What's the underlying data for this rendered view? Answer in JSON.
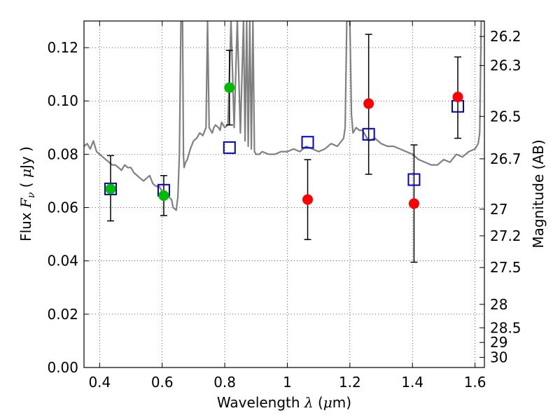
{
  "chart_data": {
    "type": "scatter",
    "title": "",
    "xlabel": "Wavelength  λ (μm)",
    "ylabel": "Flux  Fν  ( μJy )",
    "y2label": "Magnitude (AB)",
    "xlim": [
      0.35,
      1.63
    ],
    "ylim": [
      0.0,
      0.13
    ],
    "grid": true,
    "x_ticks": [
      0.4,
      0.6,
      0.8,
      1.0,
      1.2,
      1.4,
      1.6
    ],
    "x_tick_labels": [
      "0.4",
      "0.6",
      "0.8",
      "1",
      "1.2",
      "1.4",
      "1.6"
    ],
    "y_ticks": [
      0.0,
      0.02,
      0.04,
      0.06,
      0.08,
      0.1,
      0.12
    ],
    "y_tick_labels": [
      "0.00",
      "0.02",
      "0.04",
      "0.06",
      "0.08",
      "0.10",
      "0.12"
    ],
    "y2_ticks": [
      {
        "label": "26.2",
        "flux": 0.1242
      },
      {
        "label": "26.3",
        "flux": 0.1133
      },
      {
        "label": "26.5",
        "flux": 0.0942
      },
      {
        "label": "26.7",
        "flux": 0.0783
      },
      {
        "label": "27",
        "flux": 0.0594
      },
      {
        "label": "27.2",
        "flux": 0.0494
      },
      {
        "label": "27.5",
        "flux": 0.0375
      },
      {
        "label": "28",
        "flux": 0.0237
      },
      {
        "label": "28.5",
        "flux": 0.0149
      },
      {
        "label": "29",
        "flux": 0.0094
      },
      {
        "label": "30",
        "flux": 0.0038
      }
    ],
    "model_spectrum": {
      "color": "#808080",
      "x": [
        0.35,
        0.36,
        0.37,
        0.38,
        0.39,
        0.4,
        0.41,
        0.42,
        0.43,
        0.44,
        0.45,
        0.46,
        0.47,
        0.48,
        0.49,
        0.5,
        0.51,
        0.52,
        0.53,
        0.54,
        0.55,
        0.56,
        0.57,
        0.58,
        0.59,
        0.6,
        0.61,
        0.62,
        0.63,
        0.635,
        0.645,
        0.65,
        0.655,
        0.66,
        0.665,
        0.668,
        0.67,
        0.675,
        0.68,
        0.69,
        0.7,
        0.71,
        0.72,
        0.73,
        0.74,
        0.745,
        0.75,
        0.76,
        0.765,
        0.77,
        0.78,
        0.785,
        0.79,
        0.8,
        0.81,
        0.82,
        0.83,
        0.84,
        0.85,
        0.86,
        0.865,
        0.87,
        0.875,
        0.88,
        0.885,
        0.89,
        0.895,
        0.9,
        0.91,
        0.92,
        0.94,
        0.96,
        0.98,
        1.0,
        1.02,
        1.04,
        1.06,
        1.08,
        1.1,
        1.12,
        1.14,
        1.16,
        1.18,
        1.185,
        1.19,
        1.195,
        1.2,
        1.205,
        1.21,
        1.22,
        1.23,
        1.24,
        1.26,
        1.28,
        1.3,
        1.32,
        1.34,
        1.36,
        1.38,
        1.4,
        1.42,
        1.44,
        1.46,
        1.48,
        1.5,
        1.52,
        1.54,
        1.56,
        1.58,
        1.6,
        1.61,
        1.615,
        1.62,
        1.625,
        1.63
      ],
      "y": [
        0.083,
        0.084,
        0.082,
        0.085,
        0.081,
        0.08,
        0.079,
        0.078,
        0.077,
        0.076,
        0.076,
        0.075,
        0.074,
        0.076,
        0.075,
        0.075,
        0.073,
        0.072,
        0.071,
        0.07,
        0.071,
        0.072,
        0.069,
        0.068,
        0.068,
        0.066,
        0.065,
        0.064,
        0.063,
        0.06,
        0.059,
        0.064,
        0.08,
        0.13,
        0.13,
        0.08,
        0.075,
        0.077,
        0.078,
        0.082,
        0.085,
        0.086,
        0.088,
        0.087,
        0.09,
        0.13,
        0.09,
        0.088,
        0.09,
        0.091,
        0.09,
        0.089,
        0.092,
        0.09,
        0.091,
        0.13,
        0.09,
        0.13,
        0.088,
        0.13,
        0.085,
        0.13,
        0.083,
        0.13,
        0.082,
        0.13,
        0.081,
        0.08,
        0.08,
        0.081,
        0.08,
        0.08,
        0.081,
        0.081,
        0.082,
        0.081,
        0.083,
        0.082,
        0.081,
        0.082,
        0.084,
        0.083,
        0.086,
        0.09,
        0.13,
        0.13,
        0.13,
        0.095,
        0.088,
        0.09,
        0.089,
        0.089,
        0.085,
        0.086,
        0.084,
        0.083,
        0.083,
        0.082,
        0.081,
        0.08,
        0.078,
        0.077,
        0.076,
        0.076,
        0.078,
        0.077,
        0.08,
        0.079,
        0.081,
        0.082,
        0.084,
        0.088,
        0.13,
        0.13,
        0.13
      ]
    },
    "series": [
      {
        "marker": "open-square",
        "color": "#0000cc",
        "x": [
          0.435,
          0.605,
          0.815,
          1.065,
          1.26,
          1.405,
          1.545
        ],
        "y": [
          0.067,
          0.0665,
          0.0825,
          0.0845,
          0.0875,
          0.0705,
          0.098
        ]
      },
      {
        "marker": "filled-circle",
        "color": "#00bb00",
        "x": [
          0.435,
          0.605,
          0.815
        ],
        "y": [
          0.067,
          0.0645,
          0.105
        ],
        "yerr_low": [
          0.055,
          0.057,
          0.091
        ],
        "yerr_high": [
          0.0795,
          0.072,
          0.119
        ]
      },
      {
        "marker": "filled-circle",
        "color": "#ff0000",
        "x": [
          1.065,
          1.26,
          1.405,
          1.545
        ],
        "y": [
          0.063,
          0.099,
          0.0615,
          0.1015
        ],
        "yerr_low": [
          0.048,
          0.0725,
          0.0395,
          0.086
        ],
        "yerr_high": [
          0.078,
          0.125,
          0.0835,
          0.1165
        ]
      }
    ]
  }
}
